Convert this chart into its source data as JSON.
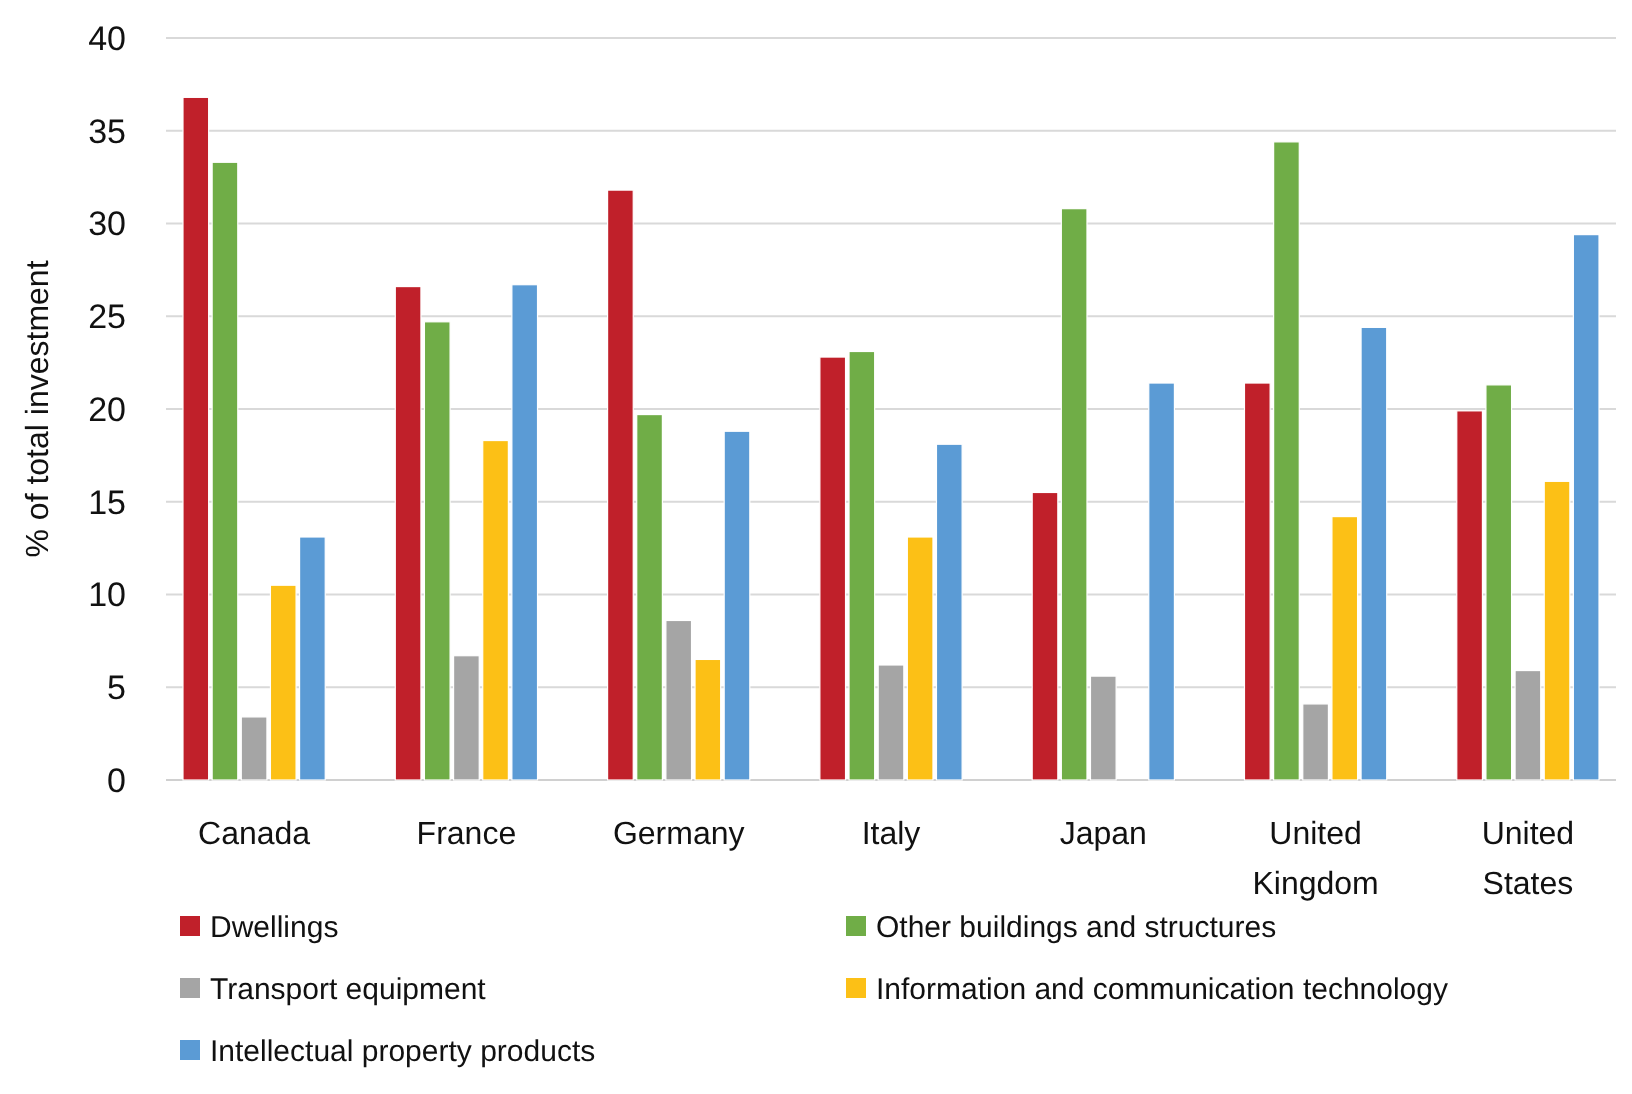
{
  "chart_data": {
    "type": "bar",
    "ylabel": "% of total investment",
    "categories": [
      "Canada",
      "France",
      "Germany",
      "Italy",
      "Japan",
      "United Kingdom",
      "United States"
    ],
    "series": [
      {
        "name": "Dwellings",
        "color": "#c0202a",
        "values": [
          36.8,
          26.6,
          31.8,
          22.8,
          15.5,
          21.4,
          19.9
        ]
      },
      {
        "name": "Other buildings and structures",
        "color": "#70ad47",
        "values": [
          33.3,
          24.7,
          19.7,
          23.1,
          30.8,
          34.4,
          21.3
        ]
      },
      {
        "name": "Transport equipment",
        "color": "#a5a5a5",
        "values": [
          3.4,
          6.7,
          8.6,
          6.2,
          5.6,
          4.1,
          5.9
        ]
      },
      {
        "name": "Information and communication technology",
        "color": "#fcc016",
        "values": [
          10.5,
          18.3,
          6.5,
          13.1,
          null,
          14.2,
          16.1
        ]
      },
      {
        "name": "Intellectual property products",
        "color": "#5b9bd5",
        "values": [
          13.1,
          26.7,
          18.8,
          18.1,
          21.4,
          24.4,
          29.4
        ]
      }
    ],
    "ylim": [
      0,
      40
    ],
    "yticks": [
      0,
      5,
      10,
      15,
      20,
      25,
      30,
      35,
      40
    ],
    "grid": true,
    "legend": "bottom"
  }
}
